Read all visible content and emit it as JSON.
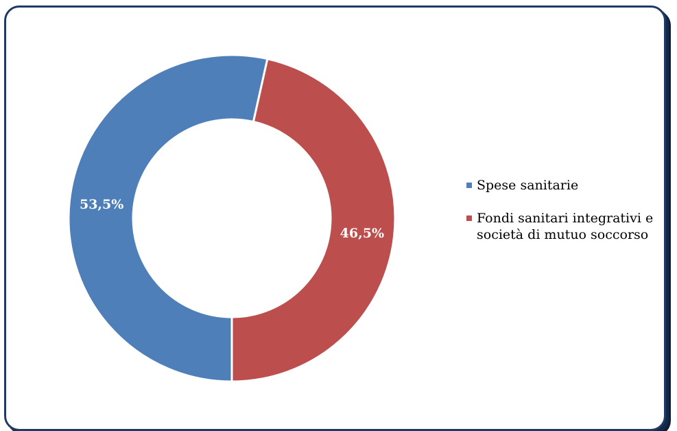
{
  "chart_data": {
    "type": "pie",
    "variant": "doughnut",
    "categories": [
      "Spese sanitarie",
      "Fondi sanitari integrativi e società di mutuo soccorso"
    ],
    "values": [
      53.5,
      46.5
    ],
    "value_labels": [
      "53,5%",
      "46,5%"
    ],
    "colors": [
      "#4f7fb8",
      "#bc4f4d"
    ],
    "legend_position": "right",
    "title": "",
    "xlabel": "",
    "ylabel": ""
  },
  "legend": {
    "items": [
      {
        "label": "Spese sanitarie",
        "color": "#4f7fb8"
      },
      {
        "label": "Fondi sanitari integrativi e società di mutuo soccorso",
        "color": "#bc4f4d"
      }
    ]
  }
}
